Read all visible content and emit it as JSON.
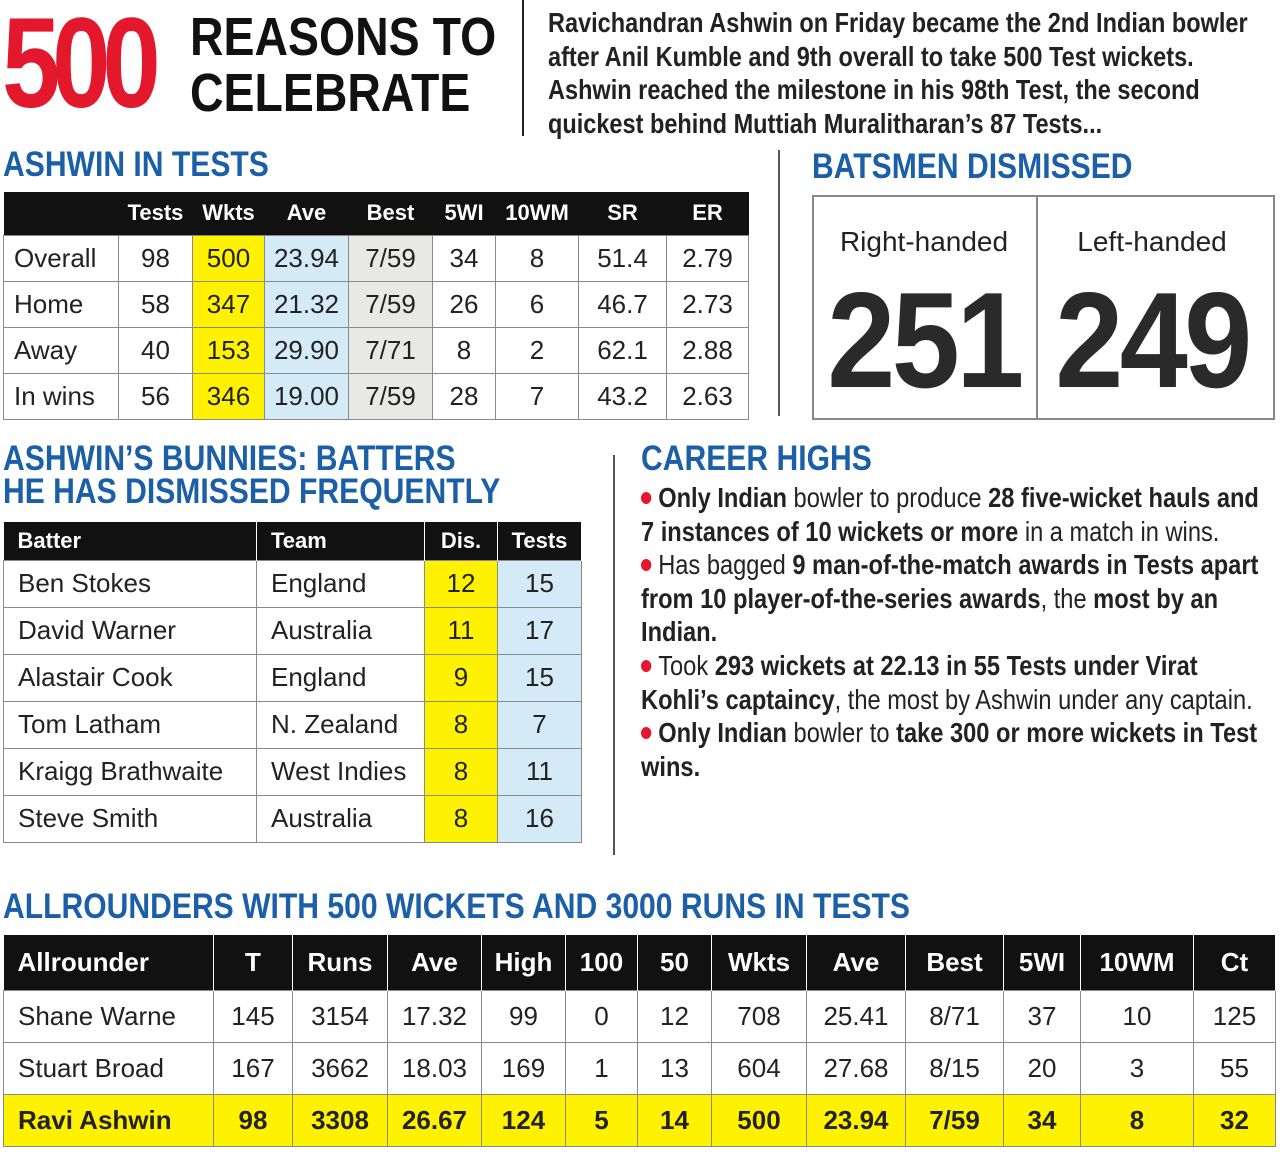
{
  "header": {
    "number": "500",
    "title_line1": "REASONS TO",
    "title_line2": "CELEBRATE",
    "intro": "Ravichandran Ashwin on Friday became the 2nd Indian bowler after Anil Kumble and 9th overall to take 500 Test wickets. Ashwin reached the milestone in his 98th Test, the second quickest behind Muttiah Muralitharan’s 87 Tests..."
  },
  "ashwin_in_tests": {
    "title": "ASHWIN IN TESTS",
    "headers": [
      "Tests",
      "Wkts",
      "Ave",
      "Best",
      "5WI",
      "10WM",
      "SR",
      "ER"
    ],
    "rows": [
      [
        "Overall",
        "98",
        "500",
        "23.94",
        "7/59",
        "34",
        "8",
        "51.4",
        "2.79"
      ],
      [
        "Home",
        "58",
        "347",
        "21.32",
        "7/59",
        "26",
        "6",
        "46.7",
        "2.73"
      ],
      [
        "Away",
        "40",
        "153",
        "29.90",
        "7/71",
        "8",
        "2",
        "62.1",
        "2.88"
      ],
      [
        "In wins",
        "56",
        "346",
        "19.00",
        "7/59",
        "28",
        "7",
        "43.2",
        "2.63"
      ]
    ]
  },
  "batsmen_dismissed": {
    "title": "BATSMEN DISMISSED",
    "items": [
      {
        "label": "Right-handed",
        "value": "251"
      },
      {
        "label": "Left-handed",
        "value": "249"
      }
    ]
  },
  "bunnies": {
    "title_line1": "ASHWIN’S BUNNIES: BATTERS",
    "title_line2": "HE HAS DISMISSED FREQUENTLY",
    "headers": [
      "Batter",
      "Team",
      "Dis.",
      "Tests"
    ],
    "rows": [
      [
        "Ben Stokes",
        "England",
        "12",
        "15"
      ],
      [
        "David Warner",
        "Australia",
        "11",
        "17"
      ],
      [
        "Alastair Cook",
        "England",
        "9",
        "15"
      ],
      [
        "Tom Latham",
        "N. Zealand",
        "8",
        "7"
      ],
      [
        "Kraigg Brathwaite",
        "West Indies",
        "8",
        "11"
      ],
      [
        "Steve Smith",
        "Australia",
        "8",
        "16"
      ]
    ]
  },
  "career_highs": {
    "title": "CAREER HIGHS",
    "bullets": [
      [
        {
          "text": "Only Indian",
          "bold": true
        },
        {
          "text": " bowler to produce ",
          "bold": false
        },
        {
          "text": "28 five-wicket hauls and 7 instances of 10 wickets or more",
          "bold": true
        },
        {
          "text": " in a match in wins.",
          "bold": false
        }
      ],
      [
        {
          "text": "Has bagged ",
          "bold": false
        },
        {
          "text": "9 man-of-the-match awards in Tests apart from 10 player-of-the-series awards",
          "bold": true
        },
        {
          "text": ", the ",
          "bold": false
        },
        {
          "text": "most by an Indian.",
          "bold": true
        }
      ],
      [
        {
          "text": "Took ",
          "bold": false
        },
        {
          "text": "293 wickets at 22.13 in 55 Tests under Virat Kohli’s captaincy",
          "bold": true
        },
        {
          "text": ", the most by Ashwin under any captain.",
          "bold": false
        }
      ],
      [
        {
          "text": "Only Indian",
          "bold": true
        },
        {
          "text": " bowler to ",
          "bold": false
        },
        {
          "text": "take 300 or more wickets in Test wins.",
          "bold": true
        }
      ]
    ]
  },
  "allrounders": {
    "title": "ALLROUNDERS WITH 500 WICKETS AND 3000 RUNS IN TESTS",
    "headers": [
      "Allrounder",
      "T",
      "Runs",
      "Ave",
      "High",
      "100",
      "50",
      "Wkts",
      "Ave",
      "Best",
      "5WI",
      "10WM",
      "Ct"
    ],
    "rows": [
      [
        "Shane Warne",
        "145",
        "3154",
        "17.32",
        "99",
        "0",
        "12",
        "708",
        "25.41",
        "8/71",
        "37",
        "10",
        "125"
      ],
      [
        "Stuart Broad",
        "167",
        "3662",
        "18.03",
        "169",
        "1",
        "13",
        "604",
        "27.68",
        "8/15",
        "20",
        "3",
        "55"
      ],
      [
        "Ravi Ashwin",
        "98",
        "3308",
        "26.67",
        "124",
        "5",
        "14",
        "500",
        "23.94",
        "7/59",
        "34",
        "8",
        "32"
      ]
    ]
  }
}
